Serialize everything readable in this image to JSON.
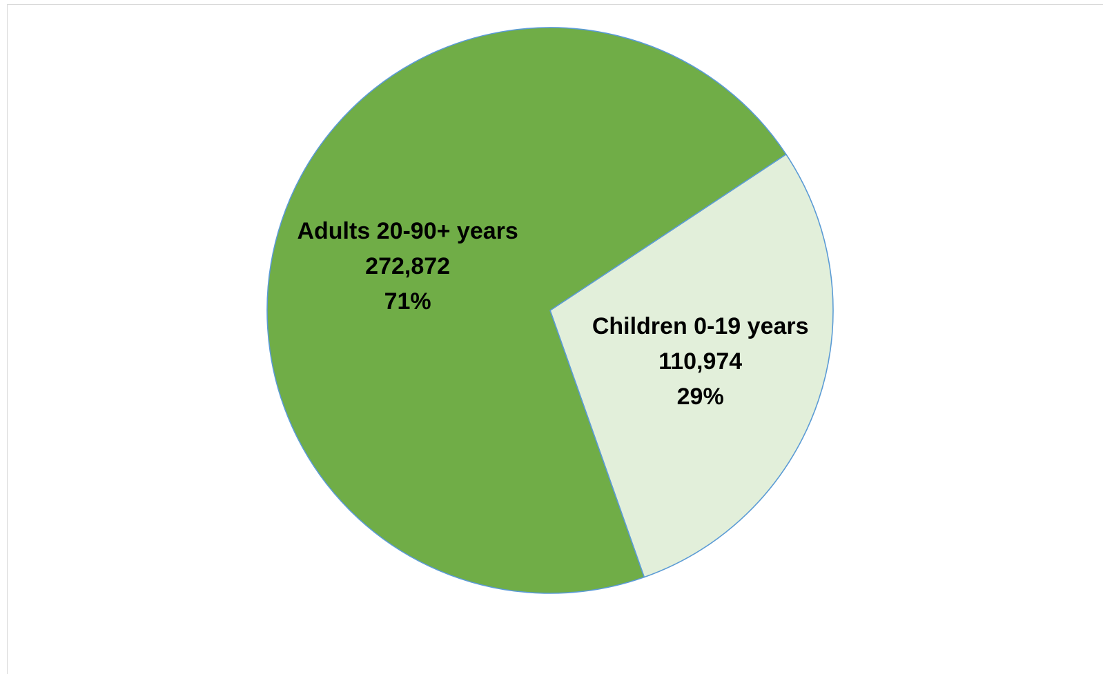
{
  "chart_data": {
    "type": "pie",
    "title": "",
    "start_angle_deg": 56.5,
    "direction": "clockwise",
    "slices": [
      {
        "label": "Children 0-19 years",
        "value": 110974,
        "value_label": "110,974",
        "percent_label": "29%",
        "color": "#e2efda"
      },
      {
        "label": "Adults 20-90+ years",
        "value": 272872,
        "value_label": "272,872",
        "percent_label": "71%",
        "color": "#70ad47"
      }
    ],
    "border_color": "#5b9bd5",
    "legend": "none"
  }
}
